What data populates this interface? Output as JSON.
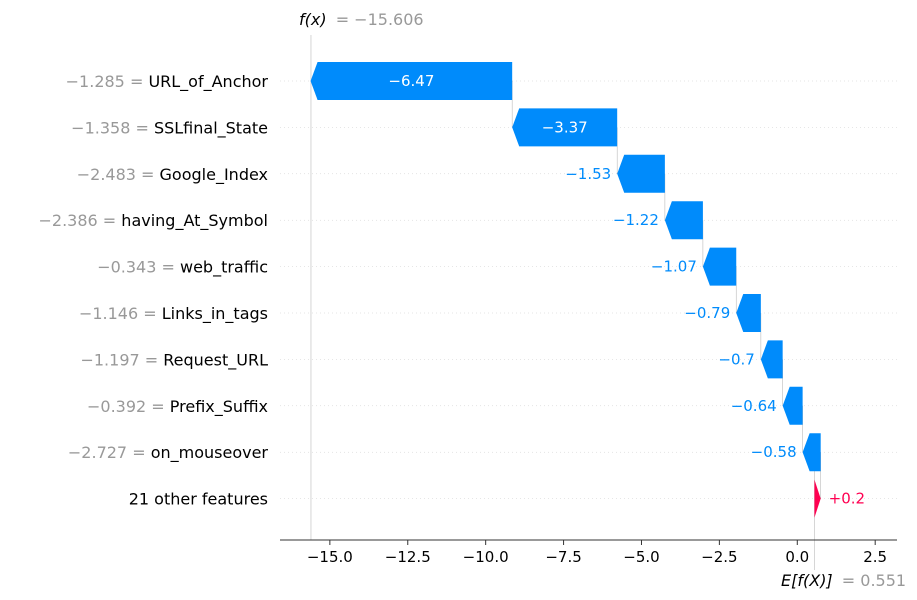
{
  "chart_data": {
    "type": "waterfall",
    "fx_label": "f(x)",
    "fx_value": "= −15.606",
    "fx": -15.606,
    "ex_label": "E[f(X)]",
    "ex_value": "= 0.551",
    "base_value": 0.551,
    "xlim": [
      -16.6,
      3.2
    ],
    "xticks": [
      -15.0,
      -12.5,
      -10.0,
      -7.5,
      -5.0,
      -2.5,
      0.0,
      2.5
    ],
    "xtick_labels": [
      "−15.0",
      "−12.5",
      "−10.0",
      "−7.5",
      "−5.0",
      "−2.5",
      "0.0",
      "2.5"
    ],
    "colors": {
      "negative": "#008bfb",
      "positive": "#ff0051",
      "value_text": "#999999"
    },
    "rows": [
      {
        "value_label": "−1.285 =",
        "feature": "URL_of_Anchor",
        "contribution": -6.47,
        "label": "−6.47",
        "label_inside": true
      },
      {
        "value_label": "−1.358 =",
        "feature": "SSLfinal_State",
        "contribution": -3.37,
        "label": "−3.37",
        "label_inside": true
      },
      {
        "value_label": "−2.483 =",
        "feature": "Google_Index",
        "contribution": -1.53,
        "label": "−1.53",
        "label_inside": false
      },
      {
        "value_label": "−2.386 =",
        "feature": "having_At_Symbol",
        "contribution": -1.22,
        "label": "−1.22",
        "label_inside": false
      },
      {
        "value_label": "−0.343 =",
        "feature": "web_traffic",
        "contribution": -1.07,
        "label": "−1.07",
        "label_inside": false
      },
      {
        "value_label": "−1.146 =",
        "feature": "Links_in_tags",
        "contribution": -0.79,
        "label": "−0.79",
        "label_inside": false
      },
      {
        "value_label": "−1.197 =",
        "feature": "Request_URL",
        "contribution": -0.7,
        "label": "−0.7",
        "label_inside": false
      },
      {
        "value_label": "−0.392 =",
        "feature": "Prefix_Suffix",
        "contribution": -0.64,
        "label": "−0.64",
        "label_inside": false
      },
      {
        "value_label": "−2.727 =",
        "feature": "on_mouseover",
        "contribution": -0.58,
        "label": "−0.58",
        "label_inside": false
      },
      {
        "value_label": "",
        "feature": "21 other features",
        "contribution": 0.2,
        "label": "+0.2",
        "label_inside": false
      }
    ]
  }
}
